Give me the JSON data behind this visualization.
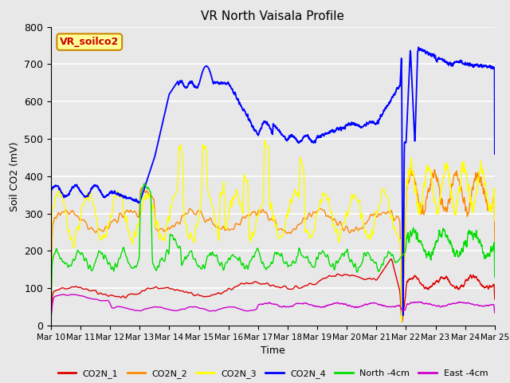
{
  "title": "VR North Vaisala Profile",
  "ylabel": "Soil CO2 (mV)",
  "xlabel": "Time",
  "ylim": [
    0,
    800
  ],
  "background_color": "#e8e8e8",
  "annotation_text": "VR_soilco2",
  "annotation_color": "#cc0000",
  "annotation_bg": "#ffff99",
  "annotation_border": "#cc8800",
  "xtick_labels": [
    "Mar 10",
    "Mar 11",
    "Mar 12",
    "Mar 13",
    "Mar 14",
    "Mar 15",
    "Mar 16",
    "Mar 17",
    "Mar 18",
    "Mar 19",
    "Mar 20",
    "Mar 21",
    "Mar 22",
    "Mar 23",
    "Mar 24",
    "Mar 25"
  ],
  "series_colors": {
    "CO2N_1": "#dd0000",
    "CO2N_2": "#ff8800",
    "CO2N_3": "#ffff00",
    "CO2N_4": "#0000ff",
    "North_4cm": "#00dd00",
    "East_4cm": "#cc00cc"
  },
  "legend_labels": [
    "CO2N_1",
    "CO2N_2",
    "CO2N_3",
    "CO2N_4",
    "North -4cm",
    "East -4cm"
  ]
}
